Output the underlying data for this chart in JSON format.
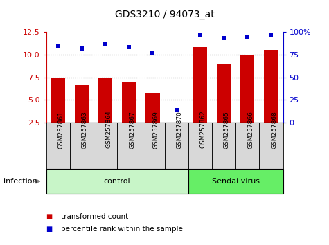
{
  "title": "GDS3210 / 94073_at",
  "samples": [
    "GSM257861",
    "GSM257863",
    "GSM257864",
    "GSM257867",
    "GSM257869",
    "GSM257870",
    "GSM257862",
    "GSM257865",
    "GSM257866",
    "GSM257868"
  ],
  "transformed_count": [
    7.5,
    6.6,
    7.5,
    6.9,
    5.8,
    2.3,
    10.8,
    8.9,
    9.9,
    10.5
  ],
  "percentile_rank": [
    85,
    82,
    87,
    83,
    77,
    14,
    97,
    93,
    95,
    96
  ],
  "groups": [
    {
      "label": "control",
      "start": 0,
      "end": 6,
      "color": "#c8f5c8"
    },
    {
      "label": "Sendai virus",
      "start": 6,
      "end": 10,
      "color": "#66ee66"
    }
  ],
  "group_label": "infection",
  "bar_color": "#cc0000",
  "dot_color": "#0000cc",
  "left_ylim": [
    2.5,
    12.5
  ],
  "left_yticks": [
    2.5,
    5.0,
    7.5,
    10.0,
    12.5
  ],
  "right_ylim": [
    0,
    100
  ],
  "right_yticks": [
    0,
    25,
    50,
    75,
    100
  ],
  "right_yticklabels": [
    "0",
    "25",
    "50",
    "75",
    "100%"
  ],
  "gridlines": [
    5.0,
    7.5,
    10.0
  ],
  "legend_items": [
    {
      "label": "transformed count",
      "color": "#cc0000"
    },
    {
      "label": "percentile rank within the sample",
      "color": "#0000cc"
    }
  ],
  "tick_label_color_left": "#cc0000",
  "tick_label_color_right": "#0000cc",
  "sample_box_color": "#d8d8d8"
}
